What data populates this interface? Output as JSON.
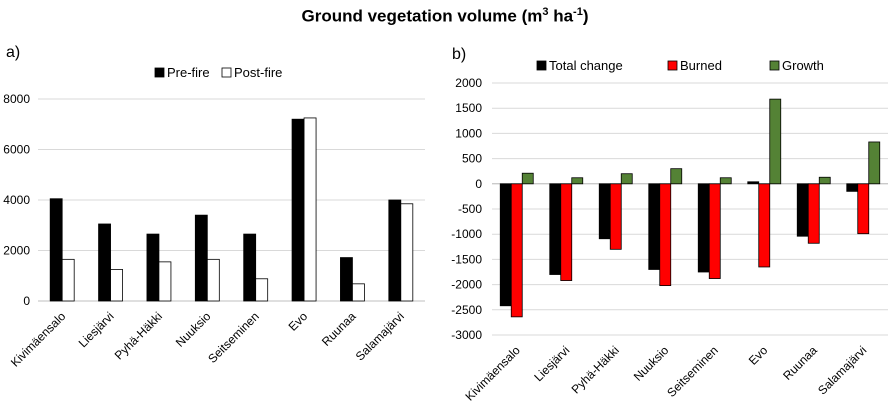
{
  "title": {
    "main": "Ground vegetation volume (m",
    "sup1": "3",
    "mid": " ha",
    "sup2": "-1",
    "end": ")"
  },
  "panels": {
    "a": "a)",
    "b": "b)"
  },
  "colors": {
    "pre_fire": "#000000",
    "post_fire": "#ffffff",
    "total_change": "#000000",
    "burned": "#ff0000",
    "growth": "#548235",
    "grid": "#d9d9d9"
  },
  "chart_data": [
    {
      "type": "bar",
      "panel": "a)",
      "categories": [
        "Kivimäensalo",
        "Liesjärvi",
        "Pyhä-Häkki",
        "Nuuksio",
        "Seitseminen",
        "Evo",
        "Ruunaa",
        "Salamajärvi"
      ],
      "series": [
        {
          "name": "Pre-fire",
          "values": [
            4050,
            3050,
            2650,
            3400,
            2650,
            7200,
            1720,
            4000
          ]
        },
        {
          "name": "Post-fire",
          "values": [
            1650,
            1250,
            1550,
            1650,
            880,
            7250,
            680,
            3850
          ]
        }
      ],
      "yticks": [
        "0",
        "2000",
        "4000",
        "6000",
        "8000"
      ],
      "ylim": [
        0,
        8000
      ],
      "grid": true,
      "legend": "top"
    },
    {
      "type": "bar",
      "panel": "b)",
      "categories": [
        "Kivimäensalo",
        "Liesjärvi",
        "Pyhä-Häkki",
        "Nuuksio",
        "Seitseminen",
        "Evo",
        "Ruunaa",
        "Salamajärvi"
      ],
      "series": [
        {
          "name": "Total change",
          "values": [
            -2420,
            -1800,
            -1090,
            -1700,
            -1750,
            40,
            -1040,
            -150
          ]
        },
        {
          "name": "Burned",
          "values": [
            -2640,
            -1920,
            -1300,
            -2020,
            -1880,
            -1650,
            -1180,
            -990
          ]
        },
        {
          "name": "Growth",
          "values": [
            210,
            120,
            200,
            300,
            120,
            1680,
            130,
            830
          ]
        }
      ],
      "yticks": [
        "-3000",
        "-2500",
        "-2000",
        "-1500",
        "-1000",
        "-500",
        "0",
        "500",
        "1000",
        "1500",
        "2000"
      ],
      "ylim": [
        -3000,
        2000
      ],
      "grid": true,
      "legend": "top"
    }
  ]
}
